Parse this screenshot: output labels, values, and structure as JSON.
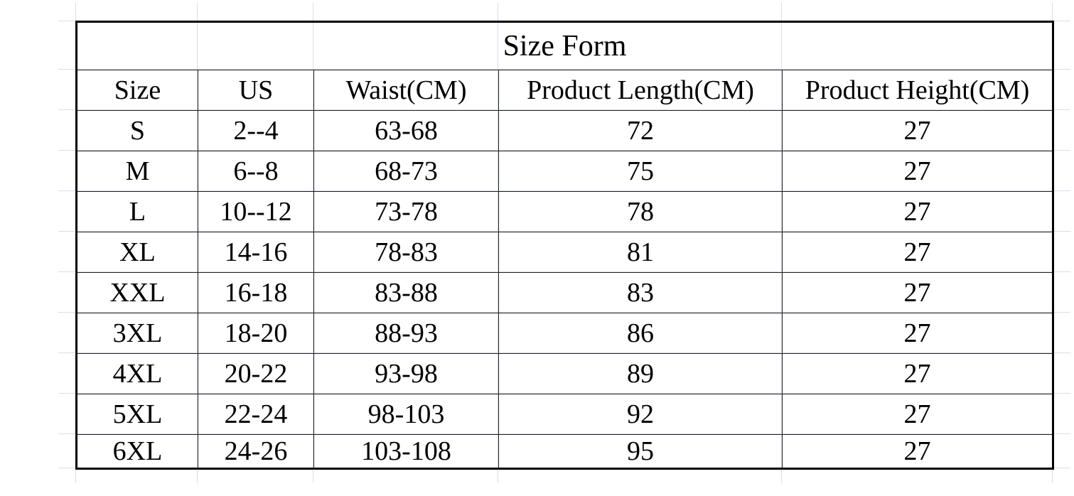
{
  "title": "Size Form",
  "columns": [
    "Size",
    "US",
    "Waist(CM)",
    "Product Length(CM)",
    "Product Height(CM)"
  ],
  "rows": [
    [
      "S",
      "2--4",
      "63-68",
      "72",
      "27"
    ],
    [
      "M",
      "6--8",
      "68-73",
      "75",
      "27"
    ],
    [
      "L",
      "10--12",
      "73-78",
      "78",
      "27"
    ],
    [
      "XL",
      "14-16",
      "78-83",
      "81",
      "27"
    ],
    [
      "XXL",
      "16-18",
      "83-88",
      "83",
      "27"
    ],
    [
      "3XL",
      "18-20",
      "88-93",
      "86",
      "27"
    ],
    [
      "4XL",
      "20-22",
      "93-98",
      "89",
      "27"
    ],
    [
      "5XL",
      "22-24",
      "98-103",
      "92",
      "27"
    ],
    [
      "6XL",
      "24-26",
      "103-108",
      "95",
      "27"
    ]
  ]
}
